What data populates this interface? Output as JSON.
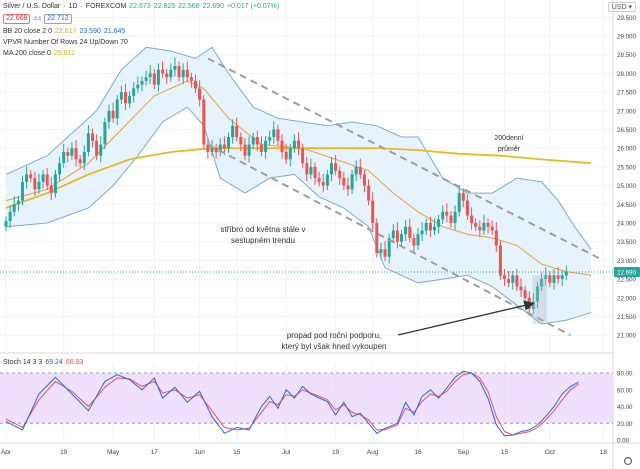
{
  "header": {
    "symbol": "Silver / U.S. Dollar",
    "interval": "1D",
    "exchange": "FOREXCOM",
    "sell_price": "22.668",
    "spread": "44",
    "buy_price": "22.712",
    "ohlc_o": "22.673",
    "ohlc_h": "22.825",
    "ohlc_l": "22.568",
    "ohlc_c": "22.690",
    "change": "+0.017 (+0.07%)",
    "bb_label": "BB 20 close 2 0",
    "bb_mid": "22.617",
    "bb_upper": "23.590",
    "bb_lower": "21.645",
    "vpvr_label": "VPVR Number Of Rows 24 Up/Down 70",
    "ma_label": "MA 200 close 0",
    "ma_value": "25.611",
    "stoch_label": "Stoch 14 3 3",
    "stoch_k": "69.24",
    "stoch_d": "66.93",
    "currency": "USD"
  },
  "chart_data": {
    "type": "candlestick",
    "title": "Silver / U.S. Dollar 1D FOREXCOM",
    "y_axis_ticks": [
      "29.500",
      "29.000",
      "28.500",
      "28.000",
      "27.500",
      "27.000",
      "26.500",
      "26.000",
      "25.500",
      "25.000",
      "24.500",
      "24.000",
      "23.500",
      "23.000",
      "22.500",
      "22.000",
      "21.500",
      "21.000"
    ],
    "y_axis_values": [
      29.5,
      29.0,
      28.5,
      28.0,
      27.5,
      27.0,
      26.5,
      26.0,
      25.5,
      25.0,
      24.5,
      24.0,
      23.5,
      23.0,
      22.5,
      22.0,
      21.5,
      21.0
    ],
    "last_price_label": "22.690",
    "last_price": 22.69,
    "x_axis_ticks": [
      {
        "label": "Apr",
        "day": 0
      },
      {
        "label": "19",
        "day": 14
      },
      {
        "label": "May",
        "day": 26
      },
      {
        "label": "17",
        "day": 36
      },
      {
        "label": "Jun",
        "day": 47
      },
      {
        "label": "15",
        "day": 56
      },
      {
        "label": "Jul",
        "day": 68
      },
      {
        "label": "19",
        "day": 80
      },
      {
        "label": "Aug",
        "day": 89
      },
      {
        "label": "16",
        "day": 100
      },
      {
        "label": "Sep",
        "day": 111
      },
      {
        "label": "15",
        "day": 121
      },
      {
        "label": "Oct",
        "day": 132
      },
      {
        "label": "18",
        "day": 145
      }
    ],
    "closes": [
      24.05,
      24.3,
      24.5,
      24.6,
      25.1,
      25.3,
      25.2,
      24.9,
      25.1,
      25.3,
      25.0,
      24.8,
      25.3,
      25.6,
      25.9,
      25.8,
      26.0,
      25.7,
      25.6,
      25.9,
      26.4,
      26.2,
      25.8,
      26.1,
      26.7,
      27.0,
      26.8,
      27.3,
      27.5,
      27.2,
      27.4,
      27.6,
      27.7,
      27.8,
      27.9,
      28.0,
      27.7,
      28.1,
      28.0,
      27.9,
      28.1,
      28.2,
      27.9,
      28.1,
      27.9,
      27.8,
      27.6,
      27.3,
      26.1,
      25.9,
      26.0,
      25.9,
      26.1,
      26.0,
      26.3,
      26.6,
      26.3,
      26.1,
      25.8,
      26.1,
      26.3,
      26.1,
      25.9,
      26.2,
      26.3,
      26.5,
      26.2,
      25.9,
      25.7,
      26.0,
      26.2,
      26.0,
      25.6,
      25.3,
      25.5,
      25.2,
      25.1,
      25.0,
      25.3,
      25.6,
      25.4,
      25.2,
      25.0,
      24.9,
      25.3,
      25.5,
      25.3,
      25.0,
      24.6,
      24.0,
      23.2,
      23.3,
      23.1,
      23.6,
      23.8,
      23.5,
      23.7,
      23.9,
      23.6,
      23.4,
      23.7,
      23.8,
      24.0,
      23.8,
      23.9,
      24.1,
      24.3,
      24.2,
      24.0,
      24.3,
      24.8,
      24.6,
      24.2,
      24.0,
      23.9,
      23.8,
      24.0,
      23.9,
      23.8,
      23.4,
      22.6,
      22.5,
      22.4,
      22.6,
      22.3,
      22.2,
      22.0,
      21.7,
      21.9,
      22.3,
      22.5,
      22.6,
      22.4,
      22.6,
      22.5,
      22.6,
      22.69
    ],
    "bb_upper_path": [
      [
        0,
        25.3
      ],
      [
        10,
        25.8
      ],
      [
        22,
        27.0
      ],
      [
        28,
        28.1
      ],
      [
        34,
        28.7
      ],
      [
        40,
        28.6
      ],
      [
        46,
        28.4
      ],
      [
        50,
        28.7
      ],
      [
        54,
        28.0
      ],
      [
        60,
        27.1
      ],
      [
        66,
        26.8
      ],
      [
        72,
        26.7
      ],
      [
        78,
        26.6
      ],
      [
        84,
        26.7
      ],
      [
        90,
        26.6
      ],
      [
        96,
        26.3
      ],
      [
        100,
        26.3
      ],
      [
        106,
        25.2
      ],
      [
        112,
        24.8
      ],
      [
        118,
        24.8
      ],
      [
        124,
        25.2
      ],
      [
        130,
        25.1
      ],
      [
        134,
        24.6
      ],
      [
        138,
        23.9
      ],
      [
        142,
        23.3
      ]
    ],
    "bb_lower_path": [
      [
        0,
        23.9
      ],
      [
        10,
        24.0
      ],
      [
        20,
        24.4
      ],
      [
        26,
        25.0
      ],
      [
        32,
        25.8
      ],
      [
        38,
        26.7
      ],
      [
        44,
        27.1
      ],
      [
        48,
        26.6
      ],
      [
        52,
        25.2
      ],
      [
        58,
        24.8
      ],
      [
        64,
        25.2
      ],
      [
        70,
        25.3
      ],
      [
        76,
        24.7
      ],
      [
        82,
        24.4
      ],
      [
        88,
        23.9
      ],
      [
        92,
        22.8
      ],
      [
        100,
        22.4
      ],
      [
        106,
        22.5
      ],
      [
        112,
        22.6
      ],
      [
        118,
        22.3
      ],
      [
        124,
        21.8
      ],
      [
        130,
        21.3
      ],
      [
        136,
        21.4
      ],
      [
        142,
        21.6
      ]
    ],
    "bb_mid_path": [
      [
        0,
        24.6
      ],
      [
        10,
        24.9
      ],
      [
        20,
        25.6
      ],
      [
        28,
        26.5
      ],
      [
        36,
        27.4
      ],
      [
        44,
        27.8
      ],
      [
        48,
        27.6
      ],
      [
        54,
        26.8
      ],
      [
        62,
        26.1
      ],
      [
        72,
        26.0
      ],
      [
        80,
        25.7
      ],
      [
        88,
        25.4
      ],
      [
        94,
        24.8
      ],
      [
        100,
        24.3
      ],
      [
        106,
        23.9
      ],
      [
        112,
        23.7
      ],
      [
        118,
        23.6
      ],
      [
        124,
        23.4
      ],
      [
        130,
        22.9
      ],
      [
        136,
        22.7
      ],
      [
        142,
        22.6
      ]
    ],
    "ma200_path": [
      [
        0,
        24.4
      ],
      [
        10,
        24.8
      ],
      [
        20,
        25.3
      ],
      [
        30,
        25.7
      ],
      [
        40,
        25.9
      ],
      [
        50,
        26.0
      ],
      [
        60,
        26.0
      ],
      [
        70,
        26.0
      ],
      [
        80,
        26.0
      ],
      [
        90,
        26.0
      ],
      [
        100,
        25.95
      ],
      [
        110,
        25.85
      ],
      [
        120,
        25.8
      ],
      [
        130,
        25.7
      ],
      [
        142,
        25.6
      ]
    ],
    "channel_upper": [
      [
        49,
        28.4
      ],
      [
        145,
        23.0
      ]
    ],
    "channel_lower": [
      [
        49,
        26.1
      ],
      [
        137,
        21.0
      ]
    ],
    "annotations": [
      {
        "id": "ma200-note",
        "text_lines": [
          "200denní",
          "průměr"
        ]
      },
      {
        "id": "downtrend-note",
        "text_lines": [
          "stříbro od května stále v",
          "sestupném trendu"
        ]
      },
      {
        "id": "support-note",
        "text_lines": [
          "propad pod roční podporu,",
          "který byl však hned vykoupen"
        ]
      }
    ],
    "stochastic": {
      "label": "Stoch 14 3 3",
      "y_ticks": [
        "80.00",
        "60.00",
        "40.00",
        "20.00",
        "0.00"
      ],
      "y_values": [
        80,
        60,
        40,
        20,
        0
      ],
      "band": [
        20,
        80
      ],
      "k_path": [
        [
          0,
          22
        ],
        [
          4,
          12
        ],
        [
          8,
          55
        ],
        [
          12,
          75
        ],
        [
          16,
          55
        ],
        [
          20,
          35
        ],
        [
          24,
          70
        ],
        [
          27,
          78
        ],
        [
          30,
          72
        ],
        [
          33,
          60
        ],
        [
          36,
          74
        ],
        [
          38,
          50
        ],
        [
          41,
          63
        ],
        [
          44,
          45
        ],
        [
          47,
          58
        ],
        [
          50,
          28
        ],
        [
          53,
          8
        ],
        [
          56,
          15
        ],
        [
          59,
          12
        ],
        [
          62,
          40
        ],
        [
          64,
          52
        ],
        [
          66,
          38
        ],
        [
          68,
          60
        ],
        [
          70,
          50
        ],
        [
          72,
          64
        ],
        [
          74,
          55
        ],
        [
          76,
          50
        ],
        [
          78,
          46
        ],
        [
          80,
          30
        ],
        [
          82,
          45
        ],
        [
          84,
          28
        ],
        [
          86,
          32
        ],
        [
          88,
          20
        ],
        [
          90,
          8
        ],
        [
          92,
          14
        ],
        [
          95,
          20
        ],
        [
          97,
          45
        ],
        [
          99,
          30
        ],
        [
          101,
          52
        ],
        [
          103,
          60
        ],
        [
          105,
          50
        ],
        [
          107,
          62
        ],
        [
          109,
          75
        ],
        [
          111,
          82
        ],
        [
          113,
          80
        ],
        [
          115,
          70
        ],
        [
          117,
          50
        ],
        [
          119,
          18
        ],
        [
          121,
          5
        ],
        [
          123,
          6
        ],
        [
          125,
          10
        ],
        [
          127,
          12
        ],
        [
          129,
          18
        ],
        [
          131,
          28
        ],
        [
          133,
          40
        ],
        [
          135,
          55
        ],
        [
          137,
          64
        ],
        [
          139,
          69
        ]
      ],
      "d_path": [
        [
          0,
          25
        ],
        [
          4,
          15
        ],
        [
          8,
          48
        ],
        [
          12,
          70
        ],
        [
          16,
          58
        ],
        [
          20,
          40
        ],
        [
          24,
          63
        ],
        [
          27,
          74
        ],
        [
          30,
          73
        ],
        [
          33,
          64
        ],
        [
          36,
          70
        ],
        [
          38,
          56
        ],
        [
          41,
          60
        ],
        [
          44,
          50
        ],
        [
          47,
          54
        ],
        [
          50,
          35
        ],
        [
          53,
          15
        ],
        [
          56,
          12
        ],
        [
          59,
          14
        ],
        [
          62,
          33
        ],
        [
          64,
          46
        ],
        [
          66,
          42
        ],
        [
          68,
          54
        ],
        [
          70,
          52
        ],
        [
          72,
          60
        ],
        [
          74,
          56
        ],
        [
          76,
          52
        ],
        [
          78,
          48
        ],
        [
          80,
          36
        ],
        [
          82,
          42
        ],
        [
          84,
          33
        ],
        [
          86,
          30
        ],
        [
          88,
          24
        ],
        [
          90,
          12
        ],
        [
          92,
          12
        ],
        [
          95,
          18
        ],
        [
          97,
          38
        ],
        [
          99,
          33
        ],
        [
          101,
          46
        ],
        [
          103,
          55
        ],
        [
          105,
          52
        ],
        [
          107,
          58
        ],
        [
          109,
          70
        ],
        [
          111,
          78
        ],
        [
          113,
          80
        ],
        [
          115,
          74
        ],
        [
          117,
          58
        ],
        [
          119,
          28
        ],
        [
          121,
          10
        ],
        [
          123,
          6
        ],
        [
          125,
          8
        ],
        [
          127,
          10
        ],
        [
          129,
          15
        ],
        [
          131,
          24
        ],
        [
          133,
          35
        ],
        [
          135,
          48
        ],
        [
          137,
          60
        ],
        [
          139,
          67
        ]
      ]
    }
  },
  "colors": {
    "up": "#26a69a",
    "down": "#ef5350",
    "bb_fill": "#e3f2fd",
    "bb_line": "#7baad8",
    "basis": "#f29c38",
    "ma200": "#e8b923",
    "channel": "#9e9e9e",
    "stoch_k": "#2962ff",
    "stoch_d": "#ef5350",
    "stoch_band": "#e9d5ff",
    "price_tag": "#26a69a"
  }
}
